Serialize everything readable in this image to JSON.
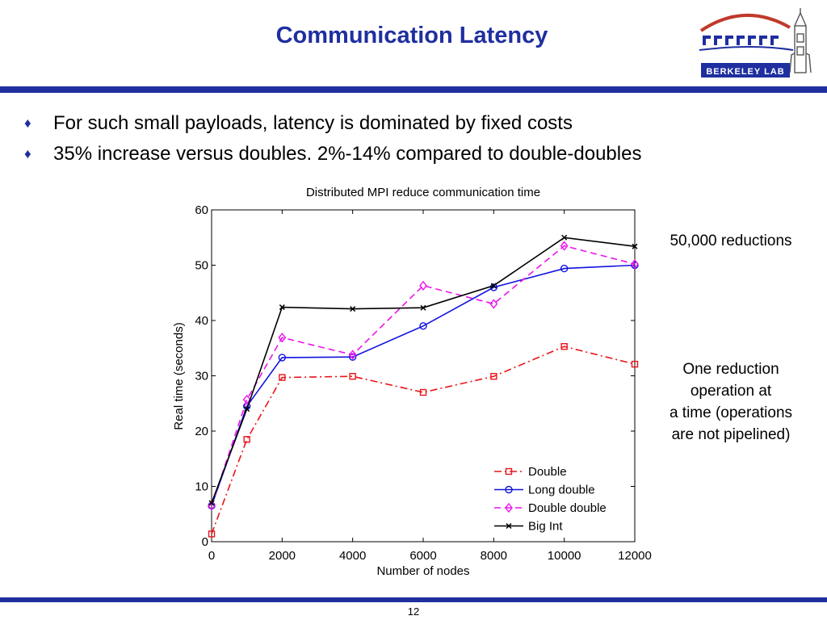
{
  "slide": {
    "title": "Communication Latency",
    "logo_text": "BERKELEY LAB",
    "bullets": [
      "For such small payloads, latency is dominated by fixed costs",
      "35% increase versus doubles. 2%-14% compared to double-doubles"
    ],
    "notes": {
      "reductions": "50,000 reductions",
      "reduction_lines": [
        "One reduction",
        "operation at",
        "a time (operations",
        "are not pipelined)"
      ]
    },
    "page_number": "12"
  },
  "colors": {
    "brand_blue": "#1f2f9f",
    "double": "#e8141a",
    "long_double": "#1212e0",
    "double_double": "#ee11ee",
    "big_int": "#000000"
  },
  "chart_data": {
    "type": "line",
    "title": "Distributed MPI reduce communication time",
    "xlabel": "Number of nodes",
    "ylabel": "Real time (seconds)",
    "xlim": [
      0,
      12000
    ],
    "ylim": [
      0,
      60
    ],
    "xticks": [
      0,
      2000,
      4000,
      6000,
      8000,
      10000,
      12000
    ],
    "yticks": [
      0,
      10,
      20,
      30,
      40,
      50,
      60
    ],
    "grid": false,
    "legend_position": "bottom-right",
    "series": [
      {
        "name": "Double",
        "color": "#e8141a",
        "dash": "dashdot",
        "marker": "square",
        "x": [
          1,
          1000,
          2000,
          4000,
          6000,
          8000,
          10000,
          12000
        ],
        "y": [
          1.4,
          18.5,
          29.7,
          29.9,
          27.0,
          29.9,
          35.3,
          32.1
        ]
      },
      {
        "name": "Long double",
        "color": "#1212e0",
        "dash": "solid",
        "marker": "circle",
        "x": [
          1,
          1000,
          2000,
          4000,
          6000,
          8000,
          10000,
          12000
        ],
        "y": [
          6.5,
          24.5,
          33.3,
          33.4,
          39.0,
          46.0,
          49.4,
          50.0
        ]
      },
      {
        "name": "Double double",
        "color": "#ee11ee",
        "dash": "dashed",
        "marker": "diamond",
        "x": [
          1,
          1000,
          2000,
          4000,
          6000,
          8000,
          10000,
          12000
        ],
        "y": [
          6.5,
          25.7,
          36.9,
          33.8,
          46.3,
          43.0,
          53.5,
          50.2
        ]
      },
      {
        "name": "Big Int",
        "color": "#000000",
        "dash": "solid",
        "marker": "x",
        "x": [
          1,
          1000,
          2000,
          4000,
          6000,
          8000,
          10000,
          12000
        ],
        "y": [
          7.0,
          24.0,
          42.4,
          42.1,
          42.3,
          46.3,
          55.0,
          53.4
        ]
      }
    ]
  }
}
